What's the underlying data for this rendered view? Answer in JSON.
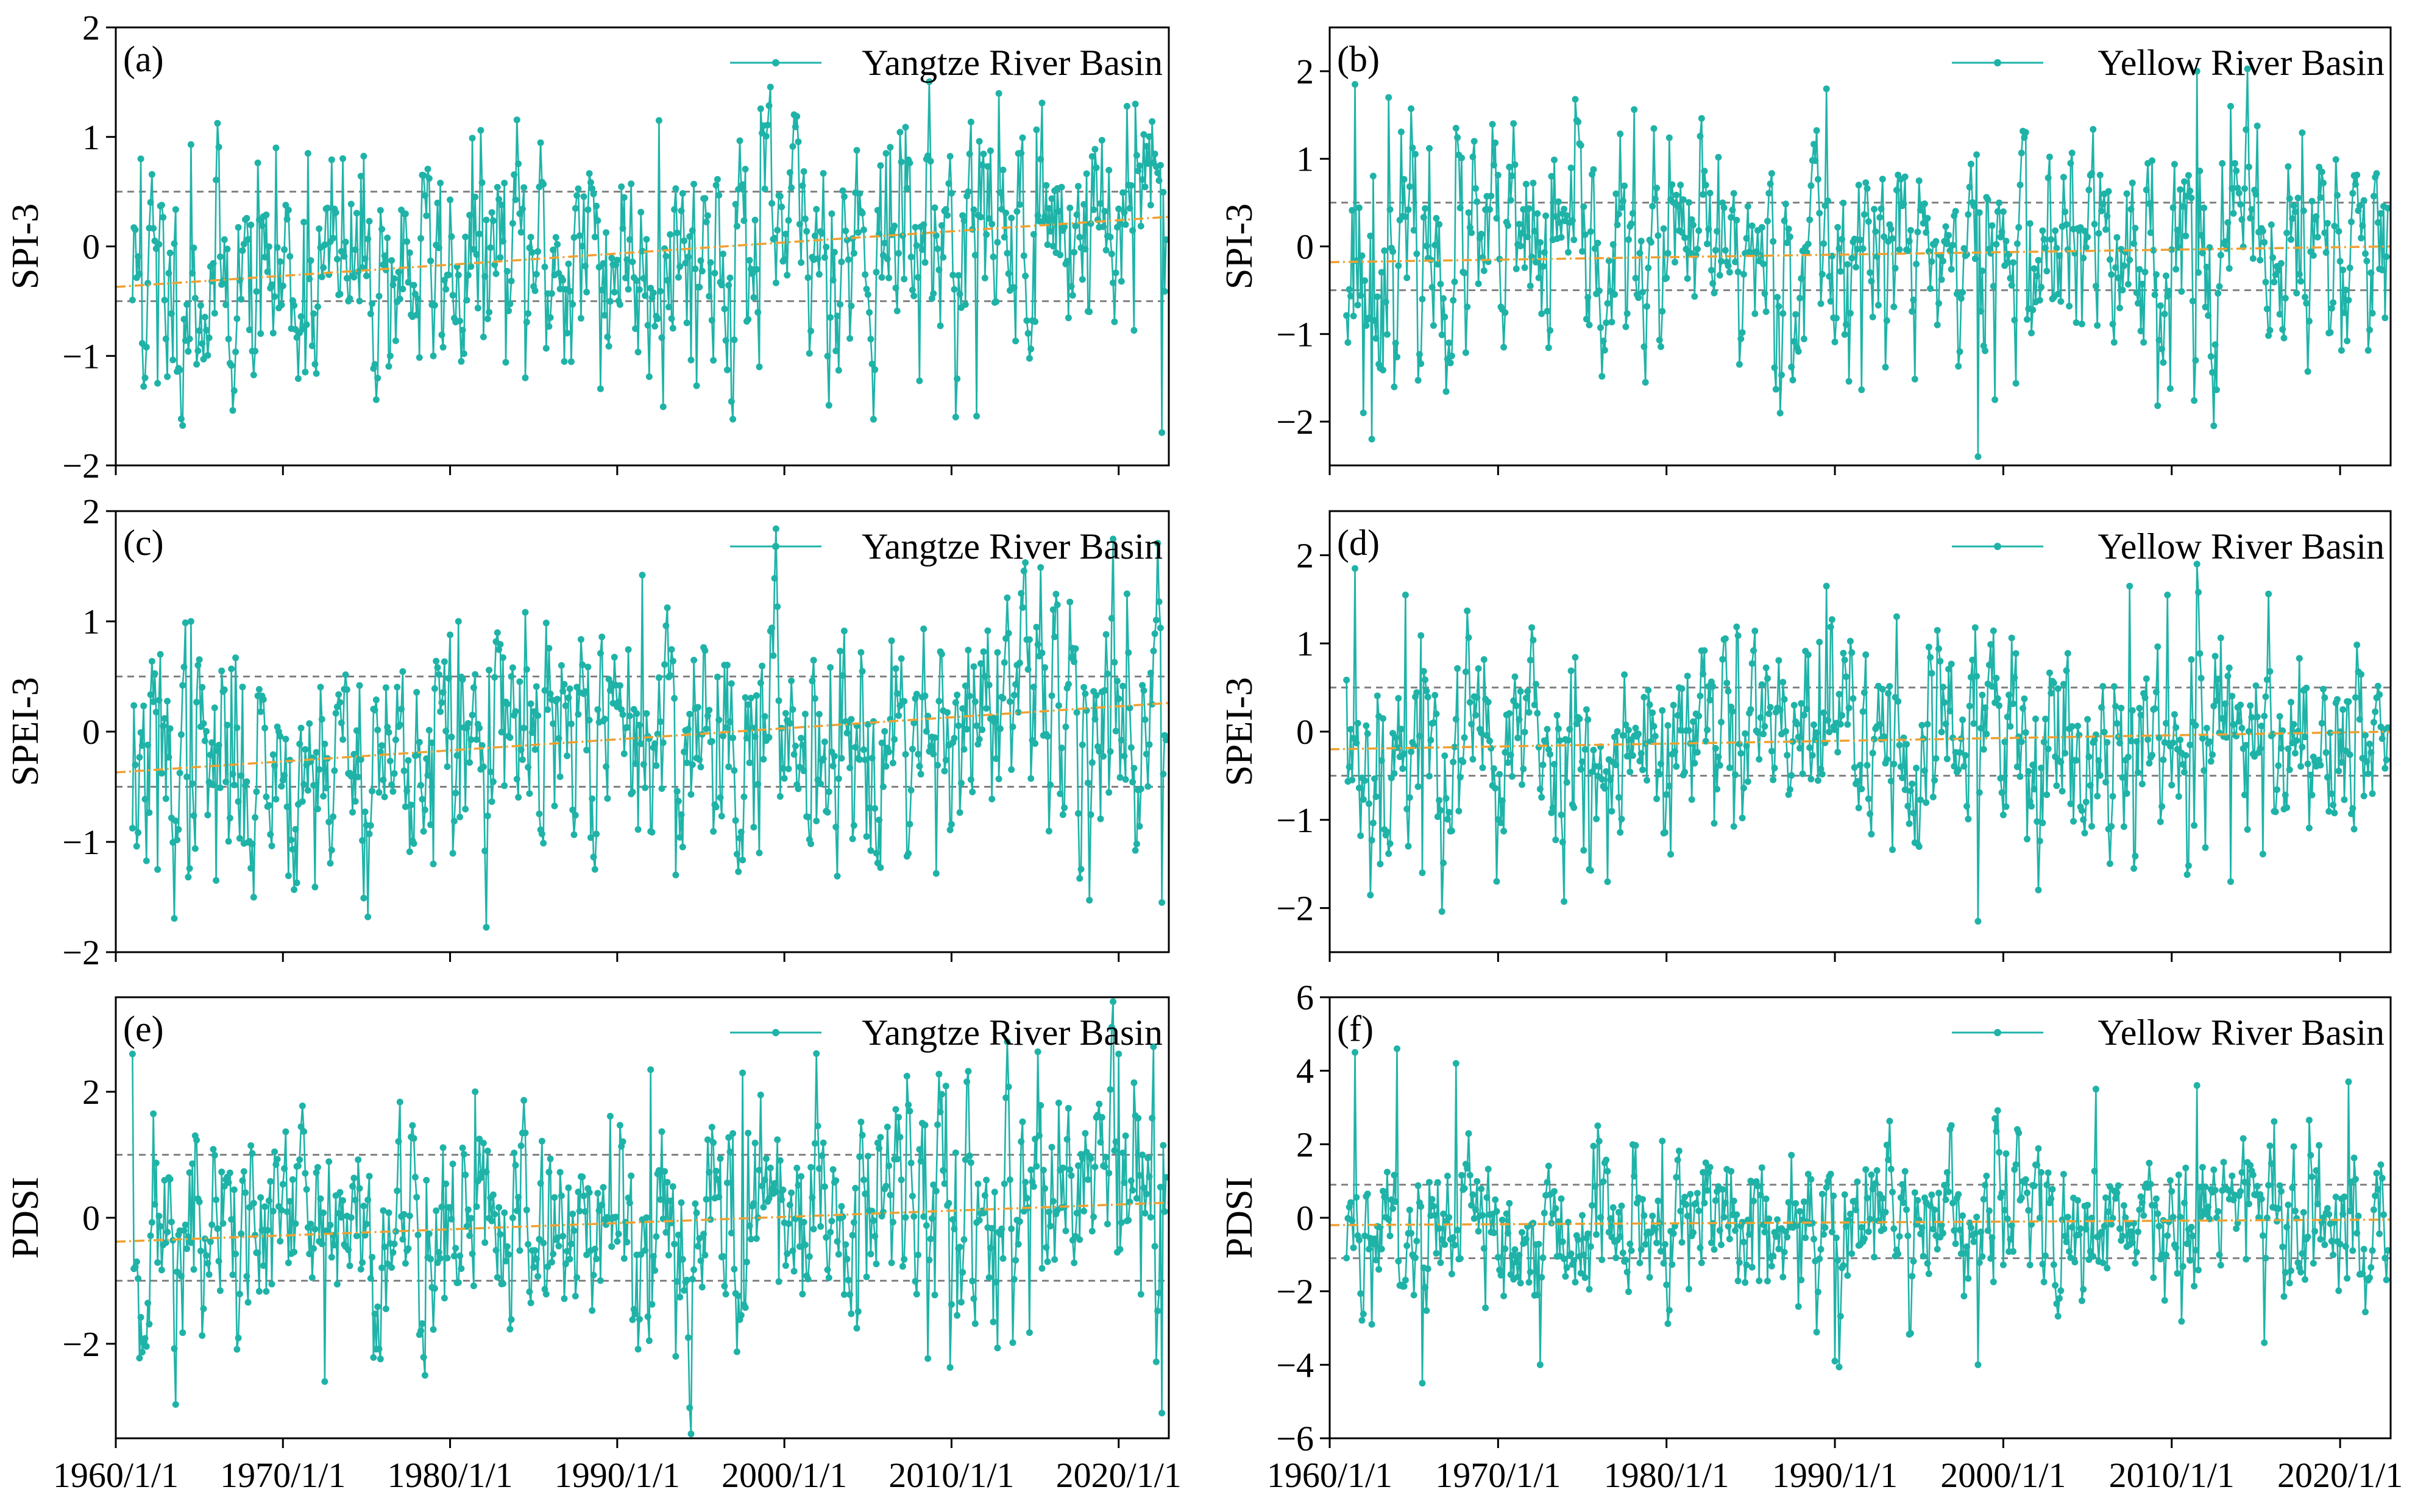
{
  "figure": {
    "series_color": "#1fb3a8",
    "trend_color": "#f0a030",
    "threshold_color": "#808080",
    "x_tick_labels": [
      "1960/1/1",
      "1970/1/1",
      "1980/1/1",
      "1990/1/1",
      "2000/1/1",
      "2010/1/1",
      "2020/1/1"
    ],
    "x_tick_years": [
      1960,
      1970,
      1980,
      1990,
      2000,
      2010,
      2020
    ]
  },
  "chart_data": [
    {
      "panel": "(a)",
      "type": "line",
      "basin": "Yangtze",
      "legend": "Yangtze River Basin",
      "ylabel": "SPI-3",
      "xlim": [
        1960,
        2023
      ],
      "ylim": [
        -2,
        2
      ],
      "yticks": [
        -2,
        -1,
        0,
        1,
        2
      ],
      "ytick_labels": [
        "−2",
        "−1",
        "0",
        "1",
        "2"
      ],
      "thresholds": [
        0.5,
        -0.5
      ],
      "trend": [
        -0.37,
        0.27
      ],
      "amp": 0.55,
      "seed": 11,
      "extremes": [
        [
          1961.5,
          0.8
        ],
        [
          1962.5,
          -1.25
        ],
        [
          1964.5,
          0.93
        ],
        [
          1971.5,
          0.85
        ],
        [
          1979.0,
          -1.0
        ],
        [
          1984.5,
          -1.2
        ],
        [
          1989.0,
          -1.3
        ],
        [
          1992.5,
          1.15
        ],
        [
          1998.5,
          -1.1
        ],
        [
          2011.5,
          -1.55
        ],
        [
          2020.5,
          1.28
        ],
        [
          2021.0,
          1.3
        ],
        [
          2022.6,
          -1.7
        ]
      ]
    },
    {
      "panel": "(b)",
      "type": "line",
      "basin": "Yellow",
      "legend": "Yellow River Basin",
      "ylabel": "SPI-3",
      "xlim": [
        1960,
        2023
      ],
      "ylim": [
        -2.5,
        2.5
      ],
      "yticks": [
        -2,
        -1,
        0,
        1,
        2
      ],
      "ytick_labels": [
        "−2",
        "−1",
        "0",
        "1",
        "2"
      ],
      "thresholds": [
        0.5,
        -0.5
      ],
      "trend": [
        -0.18,
        0.0
      ],
      "amp": 0.65,
      "seed": 23,
      "extremes": [
        [
          1961.5,
          1.85
        ],
        [
          1962.0,
          -1.9
        ],
        [
          1962.5,
          -2.2
        ],
        [
          1963.5,
          1.7
        ],
        [
          1967.5,
          1.35
        ],
        [
          1989.5,
          1.8
        ],
        [
          1998.5,
          -2.4
        ],
        [
          1999.5,
          -1.75
        ],
        [
          2011.5,
          2.0
        ],
        [
          2013.5,
          1.6
        ]
      ]
    },
    {
      "panel": "(c)",
      "type": "line",
      "basin": "Yangtze",
      "legend": "Yangtze River Basin",
      "ylabel": "SPEI-3",
      "xlim": [
        1960,
        2023
      ],
      "ylim": [
        -2,
        2
      ],
      "yticks": [
        -2,
        -1,
        0,
        1,
        2
      ],
      "ytick_labels": [
        "−2",
        "−1",
        "0",
        "1",
        "2"
      ],
      "thresholds": [
        0.5,
        -0.5
      ],
      "trend": [
        -0.37,
        0.26
      ],
      "amp": 0.55,
      "seed": 37,
      "extremes": [
        [
          1962.5,
          -1.25
        ],
        [
          1964.5,
          1.0
        ],
        [
          1966.0,
          -1.35
        ],
        [
          1979.0,
          -1.2
        ],
        [
          1980.5,
          1.0
        ],
        [
          1991.5,
          1.42
        ],
        [
          1998.5,
          -1.1
        ],
        [
          2020.5,
          1.25
        ],
        [
          2022.6,
          -1.55
        ]
      ]
    },
    {
      "panel": "(d)",
      "type": "line",
      "basin": "Yellow",
      "legend": "Yellow River Basin",
      "ylabel": "SPEI-3",
      "xlim": [
        1960,
        2023
      ],
      "ylim": [
        -2.5,
        2.5
      ],
      "yticks": [
        -2,
        -1,
        0,
        1,
        2
      ],
      "ytick_labels": [
        "−2",
        "−1",
        "0",
        "1",
        "2"
      ],
      "thresholds": [
        0.5,
        -0.5
      ],
      "trend": [
        -0.2,
        0.0
      ],
      "amp": 0.65,
      "seed": 53,
      "extremes": [
        [
          1961.5,
          1.85
        ],
        [
          1963.0,
          -1.5
        ],
        [
          1964.5,
          1.55
        ],
        [
          1965.5,
          -1.6
        ],
        [
          1989.5,
          1.65
        ],
        [
          1998.5,
          -2.15
        ],
        [
          2007.5,
          1.65
        ],
        [
          2011.5,
          1.9
        ],
        [
          2013.5,
          -1.7
        ]
      ]
    },
    {
      "panel": "(e)",
      "type": "line",
      "basin": "Yangtze",
      "legend": "Yangtze River Basin",
      "ylabel": "PDSI",
      "xlim": [
        1960,
        2023
      ],
      "ylim": [
        -3.5,
        3.5
      ],
      "yticks": [
        -2,
        0,
        2
      ],
      "ytick_labels": [
        "−2",
        "0",
        "2"
      ],
      "thresholds": [
        1.0,
        -1.0
      ],
      "trend": [
        -0.38,
        0.24
      ],
      "amp": 0.95,
      "seed": 71,
      "extremes": [
        [
          1961.0,
          2.6
        ],
        [
          1972.5,
          -2.6
        ],
        [
          1978.5,
          -2.5
        ],
        [
          1981.5,
          2.0
        ],
        [
          1992.0,
          2.35
        ],
        [
          1993.5,
          -2.2
        ],
        [
          1997.5,
          2.3
        ],
        [
          2020.0,
          2.6
        ],
        [
          2022.6,
          -3.1
        ]
      ]
    },
    {
      "panel": "(f)",
      "type": "line",
      "basin": "Yellow",
      "legend": "Yellow River Basin",
      "ylabel": "PDSI",
      "xlim": [
        1960,
        2023
      ],
      "ylim": [
        -6,
        6
      ],
      "yticks": [
        -6,
        -4,
        -2,
        0,
        2,
        4,
        6
      ],
      "ytick_labels": [
        "−6",
        "−4",
        "−2",
        "0",
        "2",
        "4",
        "6"
      ],
      "thresholds": [
        0.9,
        -1.1
      ],
      "trend": [
        -0.2,
        -0.05
      ],
      "amp": 1.1,
      "seed": 89,
      "extremes": [
        [
          1961.5,
          4.5
        ],
        [
          1962.5,
          -2.9
        ],
        [
          1964.0,
          4.6
        ],
        [
          1965.5,
          -4.5
        ],
        [
          1967.5,
          4.2
        ],
        [
          1972.5,
          -4.0
        ],
        [
          1990.0,
          -3.9
        ],
        [
          1998.5,
          -4.0
        ],
        [
          1999.5,
          2.7
        ],
        [
          2005.5,
          3.5
        ],
        [
          2011.5,
          3.6
        ],
        [
          2015.5,
          -3.4
        ],
        [
          2020.5,
          3.7
        ]
      ]
    }
  ]
}
